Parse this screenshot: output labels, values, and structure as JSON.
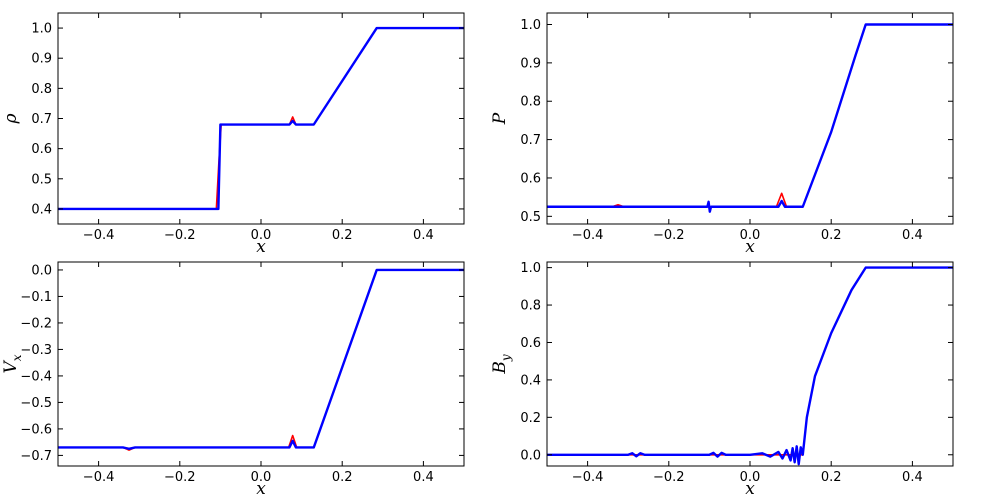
{
  "colors": {
    "red": "#ff0000",
    "blue": "#0000ff"
  },
  "chart_data": [
    {
      "type": "line",
      "panel": "top-left",
      "xlabel": "x",
      "ylabel": "ρ",
      "xlim": [
        -0.5,
        0.5
      ],
      "ylim": [
        0.35,
        1.05
      ],
      "xticks": [
        {
          "v": -0.4,
          "label": "−0.4"
        },
        {
          "v": -0.2,
          "label": "−0.2"
        },
        {
          "v": 0.0,
          "label": "0.0"
        },
        {
          "v": 0.2,
          "label": "0.2"
        },
        {
          "v": 0.4,
          "label": "0.4"
        }
      ],
      "yticks": [
        {
          "v": 0.4,
          "label": "0.4"
        },
        {
          "v": 0.5,
          "label": "0.5"
        },
        {
          "v": 0.6,
          "label": "0.6"
        },
        {
          "v": 0.7,
          "label": "0.7"
        },
        {
          "v": 0.8,
          "label": "0.8"
        },
        {
          "v": 0.9,
          "label": "0.9"
        },
        {
          "v": 1.0,
          "label": "1.0"
        }
      ],
      "series": [
        {
          "color": "#ff0000",
          "x": [
            -0.5,
            -0.11,
            -0.104,
            -0.098,
            0.07,
            0.078,
            0.086,
            0.13,
            0.285,
            0.5
          ],
          "y": [
            0.4,
            0.4,
            0.55,
            0.68,
            0.68,
            0.705,
            0.68,
            0.68,
            1.0,
            1.0
          ]
        },
        {
          "color": "#0000ff",
          "x": [
            -0.5,
            -0.105,
            -0.1,
            0.07,
            0.078,
            0.086,
            0.13,
            0.285,
            0.5
          ],
          "y": [
            0.4,
            0.4,
            0.68,
            0.68,
            0.692,
            0.68,
            0.68,
            1.0,
            1.0
          ]
        }
      ]
    },
    {
      "type": "line",
      "panel": "top-right",
      "xlabel": "x",
      "ylabel": "P",
      "xlim": [
        -0.5,
        0.5
      ],
      "ylim": [
        0.48,
        1.03
      ],
      "xticks": [
        {
          "v": -0.4,
          "label": "−0.4"
        },
        {
          "v": -0.2,
          "label": "−0.2"
        },
        {
          "v": 0.0,
          "label": "0.0"
        },
        {
          "v": 0.2,
          "label": "0.2"
        },
        {
          "v": 0.4,
          "label": "0.4"
        }
      ],
      "yticks": [
        {
          "v": 0.5,
          "label": "0.5"
        },
        {
          "v": 0.6,
          "label": "0.6"
        },
        {
          "v": 0.7,
          "label": "0.7"
        },
        {
          "v": 0.8,
          "label": "0.8"
        },
        {
          "v": 0.9,
          "label": "0.9"
        },
        {
          "v": 1.0,
          "label": "1.0"
        }
      ],
      "series": [
        {
          "color": "#ff0000",
          "x": [
            -0.5,
            -0.34,
            -0.325,
            -0.31,
            0.065,
            0.078,
            0.09,
            0.13,
            0.2,
            0.26,
            0.285,
            0.5
          ],
          "y": [
            0.525,
            0.525,
            0.53,
            0.525,
            0.525,
            0.56,
            0.525,
            0.525,
            0.72,
            0.92,
            1.0,
            1.0
          ]
        },
        {
          "color": "#0000ff",
          "x": [
            -0.5,
            -0.105,
            -0.102,
            -0.099,
            -0.096,
            0.07,
            0.078,
            0.086,
            0.13,
            0.2,
            0.26,
            0.285,
            0.5
          ],
          "y": [
            0.525,
            0.525,
            0.538,
            0.512,
            0.525,
            0.525,
            0.54,
            0.525,
            0.525,
            0.72,
            0.92,
            1.0,
            1.0
          ]
        }
      ]
    },
    {
      "type": "line",
      "panel": "bottom-left",
      "xlabel": "x",
      "ylabel": "V_x",
      "xlim": [
        -0.5,
        0.5
      ],
      "ylim": [
        -0.74,
        0.03
      ],
      "xticks": [
        {
          "v": -0.4,
          "label": "−0.4"
        },
        {
          "v": -0.2,
          "label": "−0.2"
        },
        {
          "v": 0.0,
          "label": "0.0"
        },
        {
          "v": 0.2,
          "label": "0.2"
        },
        {
          "v": 0.4,
          "label": "0.4"
        }
      ],
      "yticks": [
        {
          "v": 0.0,
          "label": "0.0"
        },
        {
          "v": -0.1,
          "label": "−0.1"
        },
        {
          "v": -0.2,
          "label": "−0.2"
        },
        {
          "v": -0.3,
          "label": "−0.3"
        },
        {
          "v": -0.4,
          "label": "−0.4"
        },
        {
          "v": -0.5,
          "label": "−0.5"
        },
        {
          "v": -0.6,
          "label": "−0.6"
        },
        {
          "v": -0.7,
          "label": "−0.7"
        }
      ],
      "series": [
        {
          "color": "#ff0000",
          "x": [
            -0.5,
            -0.34,
            -0.325,
            -0.31,
            0.068,
            0.078,
            0.088,
            0.13,
            0.285,
            0.5
          ],
          "y": [
            -0.67,
            -0.67,
            -0.68,
            -0.67,
            -0.67,
            -0.625,
            -0.67,
            -0.67,
            0.0,
            0.0
          ]
        },
        {
          "color": "#0000ff",
          "x": [
            -0.5,
            -0.34,
            -0.325,
            -0.31,
            0.07,
            0.078,
            0.086,
            0.13,
            0.285,
            0.5
          ],
          "y": [
            -0.67,
            -0.67,
            -0.675,
            -0.67,
            -0.67,
            -0.645,
            -0.67,
            -0.67,
            0.0,
            0.0
          ]
        }
      ]
    },
    {
      "type": "line",
      "panel": "bottom-right",
      "xlabel": "x",
      "ylabel": "B_y",
      "xlim": [
        -0.5,
        0.5
      ],
      "ylim": [
        -0.06,
        1.03
      ],
      "xticks": [
        {
          "v": -0.4,
          "label": "−0.4"
        },
        {
          "v": -0.2,
          "label": "−0.2"
        },
        {
          "v": 0.0,
          "label": "0.0"
        },
        {
          "v": 0.2,
          "label": "0.2"
        },
        {
          "v": 0.4,
          "label": "0.4"
        }
      ],
      "yticks": [
        {
          "v": 0.0,
          "label": "0.0"
        },
        {
          "v": 0.2,
          "label": "0.2"
        },
        {
          "v": 0.4,
          "label": "0.4"
        },
        {
          "v": 0.6,
          "label": "0.6"
        },
        {
          "v": 0.8,
          "label": "0.8"
        },
        {
          "v": 1.0,
          "label": "1.0"
        }
      ],
      "series": [
        {
          "color": "#ff0000",
          "x": [
            -0.5,
            0.13,
            0.14,
            0.16,
            0.2,
            0.25,
            0.285,
            0.5
          ],
          "y": [
            0.0,
            0.0,
            0.2,
            0.42,
            0.65,
            0.88,
            1.0,
            1.0
          ]
        },
        {
          "color": "#0000ff",
          "x": [
            -0.5,
            -0.3,
            -0.29,
            -0.28,
            -0.27,
            -0.26,
            -0.1,
            -0.09,
            -0.08,
            -0.07,
            -0.06,
            0.0,
            0.03,
            0.05,
            0.07,
            0.08,
            0.09,
            0.1,
            0.105,
            0.11,
            0.115,
            0.12,
            0.125,
            0.13,
            0.14,
            0.16,
            0.2,
            0.25,
            0.285,
            0.5
          ],
          "y": [
            0.0,
            0.0,
            0.008,
            -0.008,
            0.008,
            0.0,
            0.0,
            0.01,
            -0.01,
            0.01,
            0.0,
            0.0,
            0.008,
            -0.01,
            0.015,
            -0.02,
            0.025,
            -0.03,
            0.035,
            -0.04,
            0.045,
            -0.05,
            0.04,
            0.0,
            0.2,
            0.42,
            0.65,
            0.88,
            1.0,
            1.0
          ]
        }
      ]
    }
  ]
}
